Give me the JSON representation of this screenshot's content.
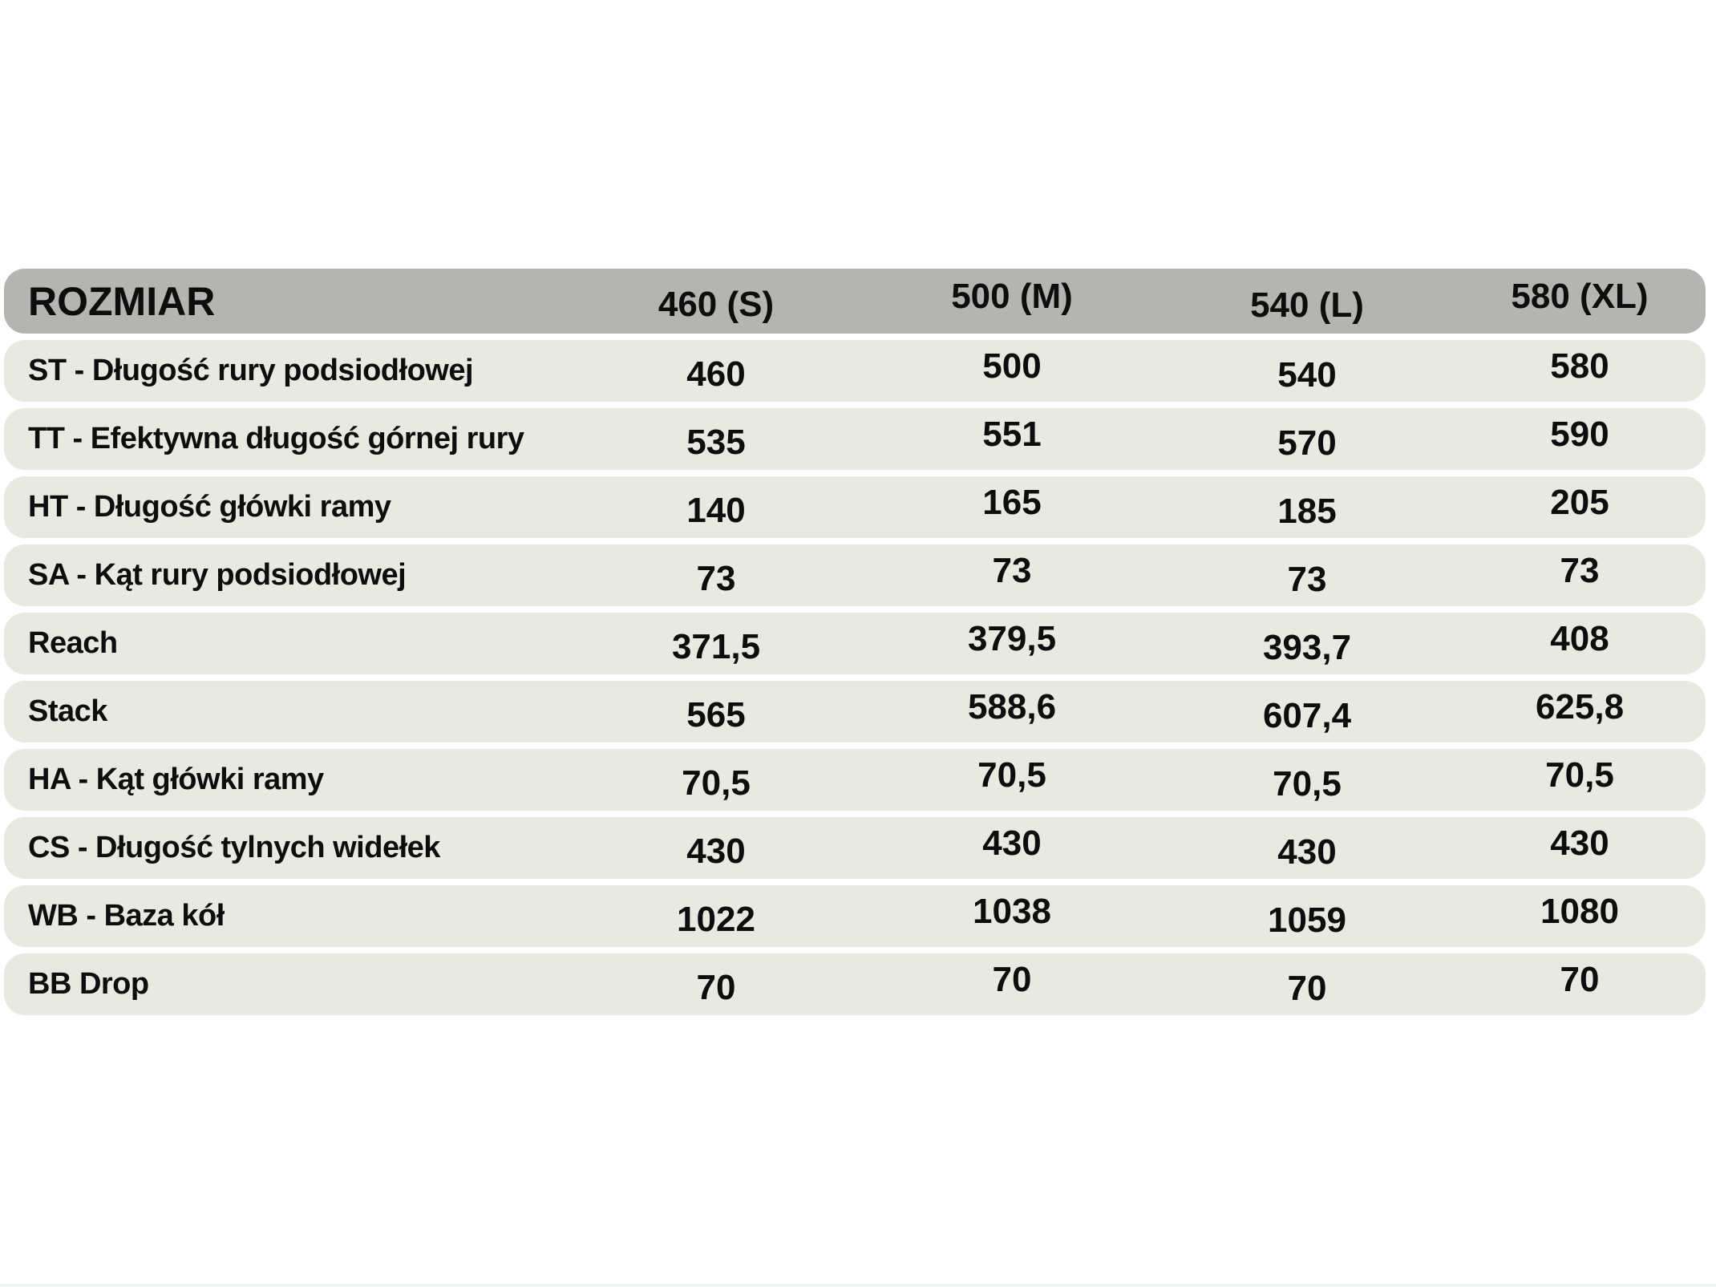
{
  "colors": {
    "header_background": "#b5b4b0",
    "row_background": "#eae9e0",
    "page_background": "#ffffff",
    "text": "#0d0d0d"
  },
  "table": {
    "header": {
      "label": "ROZMIAR",
      "columns": [
        "460 (S)",
        "500 (M)",
        "540 (L)",
        "580 (XL)"
      ]
    },
    "rows": [
      {
        "label": "ST - Długość rury podsiodłowej",
        "values": [
          "460",
          "500",
          "540",
          "580"
        ]
      },
      {
        "label": "TT - Efektywna długość górnej rury",
        "values": [
          "535",
          "551",
          "570",
          "590"
        ]
      },
      {
        "label": "HT - Długość główki ramy",
        "values": [
          "140",
          "165",
          "185",
          "205"
        ]
      },
      {
        "label": "SA - Kąt rury podsiodłowej",
        "values": [
          "73",
          "73",
          "73",
          "73"
        ]
      },
      {
        "label": "Reach",
        "values": [
          "371,5",
          "379,5",
          "393,7",
          "408"
        ]
      },
      {
        "label": "Stack",
        "values": [
          "565",
          "588,6",
          "607,4",
          "625,8"
        ]
      },
      {
        "label": "HA - Kąt główki ramy",
        "values": [
          "70,5",
          "70,5",
          "70,5",
          "70,5"
        ]
      },
      {
        "label": "CS - Długość tylnych widełek",
        "values": [
          "430",
          "430",
          "430",
          "430"
        ]
      },
      {
        "label": "WB - Baza kół",
        "values": [
          "1022",
          "1038",
          "1059",
          "1080"
        ]
      },
      {
        "label": "BB Drop",
        "values": [
          "70",
          "70",
          "70",
          "70"
        ]
      }
    ]
  },
  "chart_data": {
    "type": "table",
    "title": "ROZMIAR",
    "columns": [
      "460 (S)",
      "500 (M)",
      "540 (L)",
      "580 (XL)"
    ],
    "rows": [
      {
        "parameter": "ST - Długość rury podsiodłowej",
        "values": [
          460,
          500,
          540,
          580
        ]
      },
      {
        "parameter": "TT - Efektywna długość górnej rury",
        "values": [
          535,
          551,
          570,
          590
        ]
      },
      {
        "parameter": "HT - Długość główki ramy",
        "values": [
          140,
          165,
          185,
          205
        ]
      },
      {
        "parameter": "SA - Kąt rury podsiodłowej",
        "values": [
          73,
          73,
          73,
          73
        ]
      },
      {
        "parameter": "Reach",
        "values": [
          371.5,
          379.5,
          393.7,
          408
        ]
      },
      {
        "parameter": "Stack",
        "values": [
          565,
          588.6,
          607.4,
          625.8
        ]
      },
      {
        "parameter": "HA - Kąt główki ramy",
        "values": [
          70.5,
          70.5,
          70.5,
          70.5
        ]
      },
      {
        "parameter": "CS - Długość tylnych widełek",
        "values": [
          430,
          430,
          430,
          430
        ]
      },
      {
        "parameter": "WB - Baza kół",
        "values": [
          1022,
          1038,
          1059,
          1080
        ]
      },
      {
        "parameter": "BB Drop",
        "values": [
          70,
          70,
          70,
          70
        ]
      }
    ]
  }
}
